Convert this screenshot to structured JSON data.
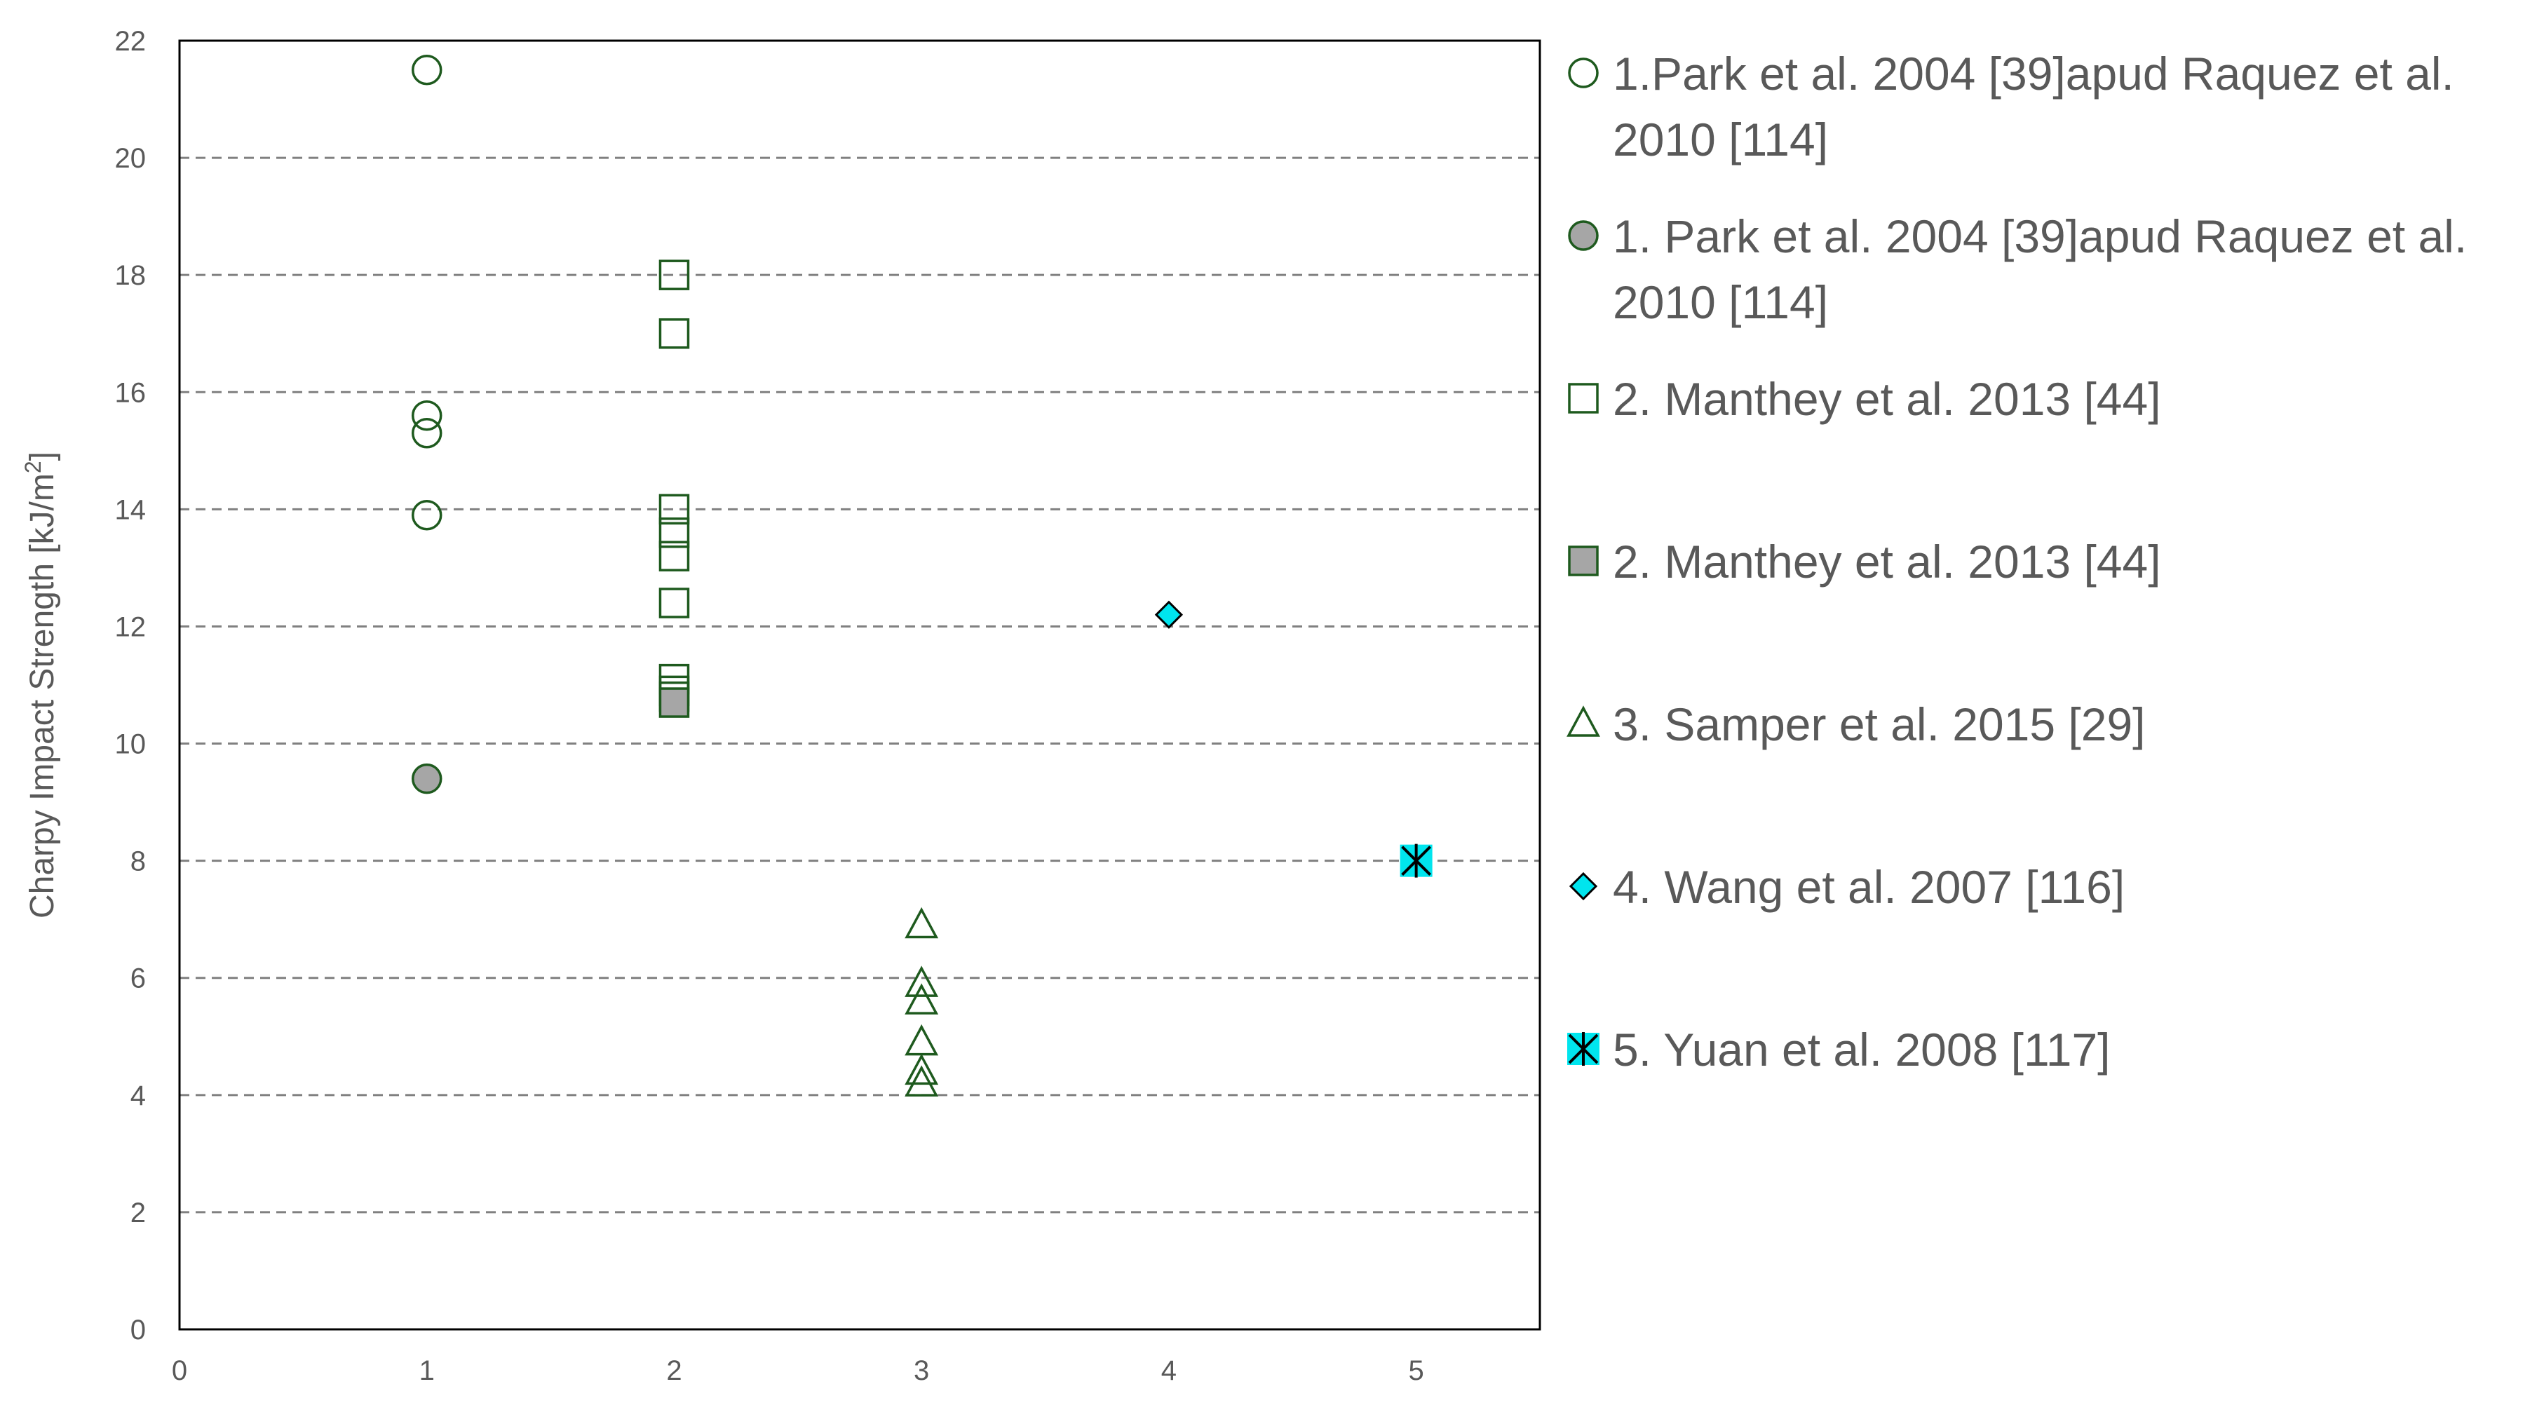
{
  "chart_data": {
    "type": "scatter",
    "ylabel": "Charpy Impact Strength [kJ/m",
    "ylabel_sup": "2",
    "ylabel_close": "]",
    "xlabel": "",
    "title": "",
    "xlim": [
      0,
      5.5
    ],
    "ylim": [
      0,
      22
    ],
    "x_ticks": [
      "0",
      "1",
      "2",
      "3",
      "4",
      "5"
    ],
    "y_ticks": [
      "0",
      "2",
      "4",
      "6",
      "8",
      "10",
      "12",
      "14",
      "16",
      "18",
      "20",
      "22"
    ],
    "grid": "horizontal dashed",
    "legend_position": "right",
    "colors": {
      "dark_green": "#1e5a1e",
      "gray_fill": "#a6a6a6",
      "cyan": "#00e5ee",
      "grid": "#808080",
      "text": "#595959"
    },
    "series": [
      {
        "name": "1.Park et al. 2004 [39]apud Raquez et al. 2010 [114]",
        "legend_lines": [
          "1.Park et al. 2004 [39]apud Raquez et al.",
          "2010 [114]"
        ],
        "marker": "circle-open-icon",
        "x": [
          1,
          1,
          1,
          1
        ],
        "y": [
          21.5,
          15.6,
          15.3,
          13.9
        ]
      },
      {
        "name": "1. Park et al. 2004 [39]apud Raquez et al. 2010 [114]",
        "legend_lines": [
          "1. Park et al. 2004 [39]apud Raquez et al.",
          "2010 [114]"
        ],
        "marker": "circle-filled-icon",
        "x": [
          1
        ],
        "y": [
          9.4
        ]
      },
      {
        "name": "2. Manthey et al. 2013 [44]",
        "legend_lines": [
          "2. Manthey et al. 2013 [44]"
        ],
        "marker": "square-open-icon",
        "x": [
          2,
          2,
          2,
          2,
          2,
          2,
          2,
          2,
          2
        ],
        "y": [
          18.0,
          17.0,
          14.0,
          13.6,
          13.2,
          12.4,
          11.1,
          10.9,
          10.8
        ]
      },
      {
        "name": "2. Manthey et al. 2013 [44]",
        "legend_lines": [
          "2. Manthey et al. 2013 [44]"
        ],
        "marker": "square-filled-icon",
        "x": [
          2
        ],
        "y": [
          10.7
        ]
      },
      {
        "name": "3. Samper et al. 2015 [29]",
        "legend_lines": [
          "3. Samper et al. 2015 [29]"
        ],
        "marker": "triangle-open-icon",
        "x": [
          3,
          3,
          3,
          3,
          3,
          3
        ],
        "y": [
          6.9,
          5.9,
          5.6,
          4.9,
          4.4,
          4.2
        ]
      },
      {
        "name": "4. Wang et al. 2007 [116]",
        "legend_lines": [
          "4. Wang et al. 2007 [116]"
        ],
        "marker": "diamond-cyan-icon",
        "x": [
          4
        ],
        "y": [
          12.2
        ]
      },
      {
        "name": "5. Yuan et al. 2008 [117]",
        "legend_lines": [
          "5. Yuan et al. 2008 [117]"
        ],
        "marker": "asterisk-cyan-icon",
        "x": [
          5
        ],
        "y": [
          8.0
        ]
      }
    ]
  }
}
